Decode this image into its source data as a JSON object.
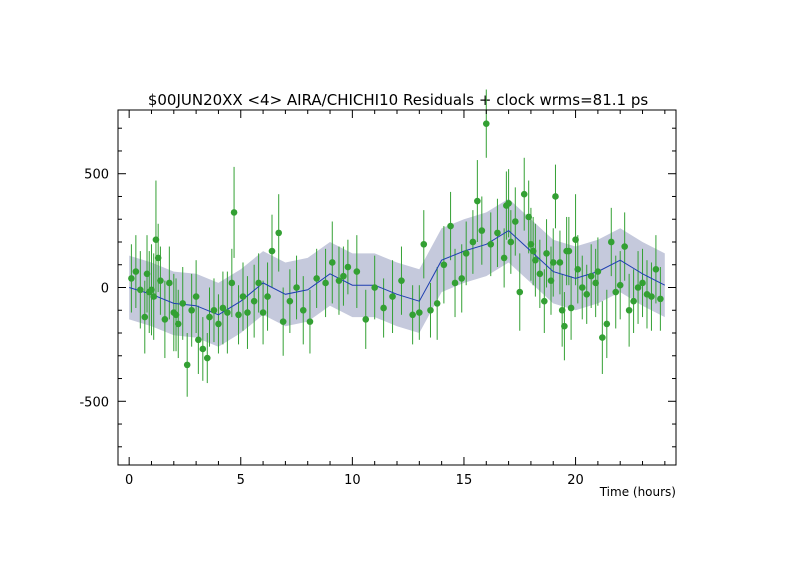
{
  "chart_data": {
    "type": "scatter",
    "title": "$00JUN20XX <4> AIRA/CHICHI10 Residuals + clock wrms=81.1  ps",
    "xlabel": "Time (hours)",
    "ylabel": "",
    "xlim": [
      -0.5,
      24.5
    ],
    "ylim": [
      -780,
      780
    ],
    "xticks": [
      0,
      5,
      10,
      15,
      20
    ],
    "yticks": [
      -500,
      0,
      500
    ],
    "grid": false,
    "colors": {
      "points": "#33a033",
      "clock_line": "#1f3fb0",
      "band": "#c5c9dc"
    },
    "clock": {
      "x": [
        0,
        1,
        2,
        3,
        4,
        5,
        6,
        7,
        8,
        9,
        10,
        11,
        12,
        13,
        13.5,
        14,
        15,
        16,
        17,
        18,
        19,
        20,
        21,
        22,
        23,
        24
      ],
      "y": [
        0,
        -30,
        -70,
        -80,
        -120,
        -60,
        20,
        -30,
        -10,
        60,
        10,
        10,
        -30,
        -60,
        30,
        120,
        160,
        190,
        250,
        160,
        70,
        40,
        70,
        120,
        60,
        10
      ],
      "band_half_width": 140
    },
    "points": {
      "x": [
        0.1,
        0.3,
        0.5,
        0.7,
        0.8,
        0.9,
        1.0,
        1.1,
        1.2,
        1.3,
        1.4,
        1.6,
        1.8,
        2.0,
        2.1,
        2.2,
        2.4,
        2.6,
        2.8,
        3.0,
        3.1,
        3.3,
        3.5,
        3.6,
        3.8,
        4.0,
        4.2,
        4.4,
        4.6,
        4.7,
        4.9,
        5.1,
        5.3,
        5.6,
        5.8,
        6.0,
        6.2,
        6.4,
        6.7,
        6.9,
        7.2,
        7.5,
        7.8,
        8.1,
        8.4,
        8.8,
        9.1,
        9.4,
        9.6,
        9.8,
        10.2,
        10.6,
        11.0,
        11.4,
        11.8,
        12.2,
        12.7,
        13.0,
        13.2,
        13.5,
        13.8,
        14.1,
        14.4,
        14.6,
        14.9,
        15.1,
        15.4,
        15.6,
        15.8,
        16.0,
        16.2,
        16.5,
        16.8,
        16.9,
        17.0,
        17.1,
        17.3,
        17.5,
        17.7,
        17.9,
        18.0,
        18.1,
        18.2,
        18.4,
        18.6,
        18.7,
        18.9,
        19.0,
        19.1,
        19.3,
        19.4,
        19.5,
        19.6,
        19.7,
        19.8,
        20.0,
        20.1,
        20.3,
        20.5,
        20.7,
        20.9,
        21.0,
        21.2,
        21.4,
        21.6,
        21.8,
        22.0,
        22.2,
        22.4,
        22.6,
        22.8,
        23.0,
        23.2,
        23.4,
        23.6,
        23.8
      ],
      "y": [
        40,
        70,
        -10,
        -130,
        60,
        -20,
        -10,
        -40,
        210,
        130,
        30,
        -140,
        20,
        -110,
        -120,
        -160,
        -70,
        -340,
        -100,
        -40,
        -230,
        -270,
        -310,
        -130,
        -100,
        -160,
        -90,
        -110,
        20,
        330,
        -120,
        -40,
        -110,
        -60,
        20,
        -110,
        -40,
        160,
        240,
        -150,
        -60,
        0,
        -100,
        -150,
        40,
        20,
        110,
        30,
        50,
        90,
        70,
        -140,
        0,
        -90,
        -40,
        30,
        -120,
        -110,
        190,
        -100,
        -70,
        100,
        270,
        20,
        40,
        150,
        200,
        380,
        250,
        720,
        190,
        240,
        130,
        360,
        370,
        200,
        290,
        -20,
        410,
        310,
        190,
        160,
        120,
        60,
        -60,
        150,
        30,
        110,
        400,
        110,
        -100,
        -170,
        160,
        160,
        -90,
        210,
        80,
        0,
        -30,
        50,
        20,
        70,
        -220,
        -160,
        200,
        -20,
        10,
        180,
        -100,
        -60,
        0,
        20,
        -30,
        -40,
        80,
        -50
      ],
      "err": [
        150,
        160,
        170,
        160,
        170,
        180,
        200,
        190,
        260,
        150,
        150,
        170,
        160,
        170,
        160,
        150,
        160,
        140,
        160,
        160,
        150,
        140,
        110,
        130,
        140,
        130,
        160,
        180,
        150,
        200,
        130,
        150,
        160,
        160,
        130,
        140,
        150,
        160,
        170,
        150,
        140,
        140,
        150,
        140,
        130,
        150,
        180,
        150,
        130,
        120,
        160,
        130,
        140,
        130,
        160,
        150,
        130,
        120,
        150,
        120,
        160,
        170,
        150,
        150,
        150,
        140,
        140,
        180,
        150,
        150,
        140,
        150,
        130,
        150,
        150,
        140,
        150,
        170,
        160,
        160,
        160,
        150,
        160,
        150,
        140,
        150,
        150,
        150,
        140,
        140,
        160,
        150,
        150,
        150,
        140,
        200,
        150,
        140,
        130,
        140,
        150,
        150,
        160,
        150,
        150,
        160,
        150,
        150,
        160,
        140,
        160,
        150,
        150,
        150,
        150,
        140
      ]
    }
  }
}
